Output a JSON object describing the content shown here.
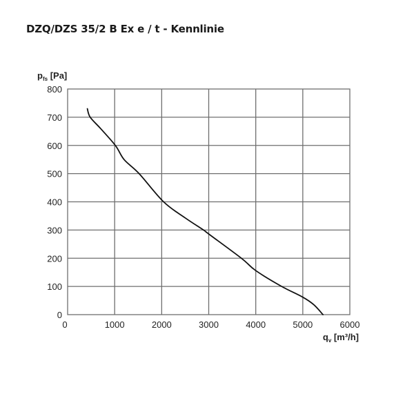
{
  "title": "DZQ/DZS 35/2 B Ex e / t - Kennlinie",
  "chart_data": {
    "type": "line",
    "title": "DZQ/DZS 35/2 B Ex e / t - Kennlinie",
    "xlabel": "q_v [m³/h]",
    "xlabel_main": "q",
    "xlabel_sub": "v",
    "xlabel_unit": " [m³/h]",
    "ylabel": "p_fs [Pa]",
    "ylabel_main": "p",
    "ylabel_sub": "fs",
    "ylabel_unit": " [Pa]",
    "xlim": [
      0,
      6000
    ],
    "ylim": [
      0,
      800
    ],
    "x_ticks": [
      0,
      1000,
      2000,
      3000,
      4000,
      5000,
      6000
    ],
    "y_ticks": [
      0,
      100,
      200,
      300,
      400,
      500,
      600,
      700,
      800
    ],
    "grid": true,
    "legend": null,
    "series": [
      {
        "name": "Kennlinie",
        "color": "#111111",
        "x": [
          420,
          480,
          700,
          1015,
          1200,
          1520,
          2040,
          2500,
          2890,
          3000,
          3695,
          4000,
          4550,
          5000,
          5235,
          5430
        ],
        "y": [
          730,
          700,
          660,
          600,
          550,
          500,
          400,
          343,
          300,
          286,
          200,
          156,
          100,
          62,
          35,
          0
        ]
      }
    ]
  }
}
